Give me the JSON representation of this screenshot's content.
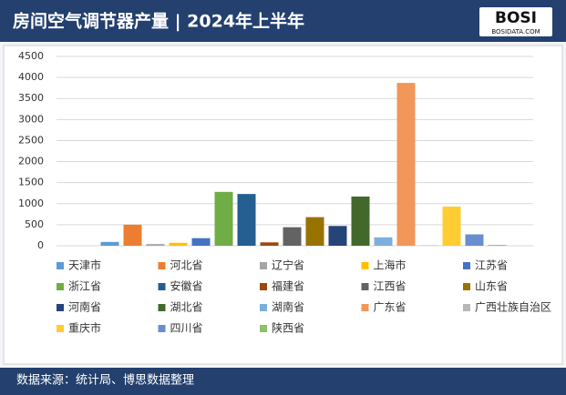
{
  "chart_data": {
    "type": "bar",
    "title": "房间空气调节器产量 | 2024年上半年",
    "logo": {
      "name": "BOSI",
      "site": "BOSIDATA.COM"
    },
    "source": "数据来源：统计局、博思数据整理",
    "categories": [
      "天津市",
      "河北省",
      "辽宁省",
      "上海市",
      "江苏省",
      "浙江省",
      "安徽省",
      "福建省",
      "江西省",
      "山东省",
      "河南省",
      "湖北省",
      "湖南省",
      "广东省",
      "广西壮族自治区",
      "重庆市",
      "四川省",
      "陕西省"
    ],
    "values": [
      90,
      500,
      40,
      70,
      180,
      1280,
      1230,
      80,
      440,
      680,
      470,
      1170,
      200,
      3870,
      10,
      930,
      270,
      20
    ],
    "colors": [
      "#5b9bd5",
      "#ed7d31",
      "#a5a5a5",
      "#ffc000",
      "#4472c4",
      "#70ad47",
      "#255e91",
      "#9e480e",
      "#636363",
      "#997300",
      "#264478",
      "#43682b",
      "#7cafdd",
      "#f1975a",
      "#b7b7b7",
      "#ffcd33",
      "#698ed0",
      "#8cc168"
    ],
    "ylim": [
      0,
      4500
    ],
    "yticks": [
      0,
      500,
      1000,
      1500,
      2000,
      2500,
      3000,
      3500,
      4000,
      4500
    ],
    "grid": true
  }
}
